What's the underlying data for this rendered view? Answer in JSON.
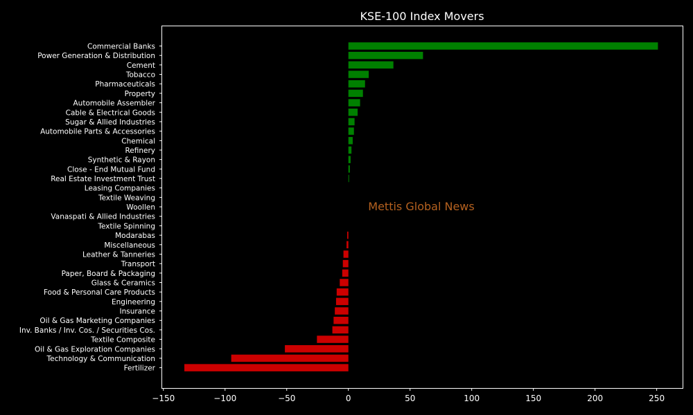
{
  "chart_data": {
    "type": "bar",
    "orientation": "horizontal",
    "title": "KSE-100 Index Movers",
    "xlabel": "",
    "ylabel": "",
    "xlim": [
      -151,
      271
    ],
    "xticks": [
      -150,
      -100,
      -50,
      0,
      50,
      100,
      150,
      200,
      250
    ],
    "xtick_labels": [
      "−150",
      "−100",
      "−50",
      "0",
      "50",
      "100",
      "150",
      "200",
      "250"
    ],
    "grid": false,
    "watermark": "Mettis Global News",
    "colors": {
      "background": "#000000",
      "positive": "#008000",
      "negative": "#cc0000",
      "text": "#ffffff",
      "axis": "#ffffff",
      "watermark": "#b5611f"
    },
    "categories": [
      "Commercial Banks",
      "Power Generation & Distribution",
      "Cement",
      "Tobacco",
      "Pharmaceuticals",
      "Property",
      "Automobile Assembler",
      "Cable & Electrical Goods",
      "Sugar & Allied Industries",
      "Automobile Parts & Accessories",
      "Chemical",
      "Refinery",
      "Synthetic & Rayon",
      "Close - End Mutual Fund",
      "Real Estate Investment Trust",
      "Leasing Companies",
      "Textile Weaving",
      "Woollen",
      "Vanaspati & Allied Industries",
      "Textile Spinning",
      "Modarabas",
      "Miscellaneous",
      "Leather & Tanneries",
      "Transport",
      "Paper, Board & Packaging",
      "Glass & Ceramics",
      "Food & Personal Care Products",
      "Engineering",
      "Insurance",
      "Oil & Gas Marketing Companies",
      "Inv. Banks / Inv. Cos. / Securities Cos.",
      "Textile Composite",
      "Oil & Gas Exploration Companies",
      "Technology & Communication",
      "Fertilizer"
    ],
    "values": [
      251.0,
      60.5,
      36.5,
      16.5,
      13.5,
      11.8,
      9.5,
      7.5,
      5.0,
      4.5,
      3.5,
      2.5,
      1.8,
      1.2,
      0.5,
      0,
      0,
      0,
      0,
      0,
      -1.0,
      -1.5,
      -4.0,
      -4.5,
      -5.0,
      -7.0,
      -9.5,
      -10.0,
      -11.0,
      -12.0,
      -13.0,
      -25.5,
      -51.5,
      -95.0,
      -133.0
    ]
  }
}
